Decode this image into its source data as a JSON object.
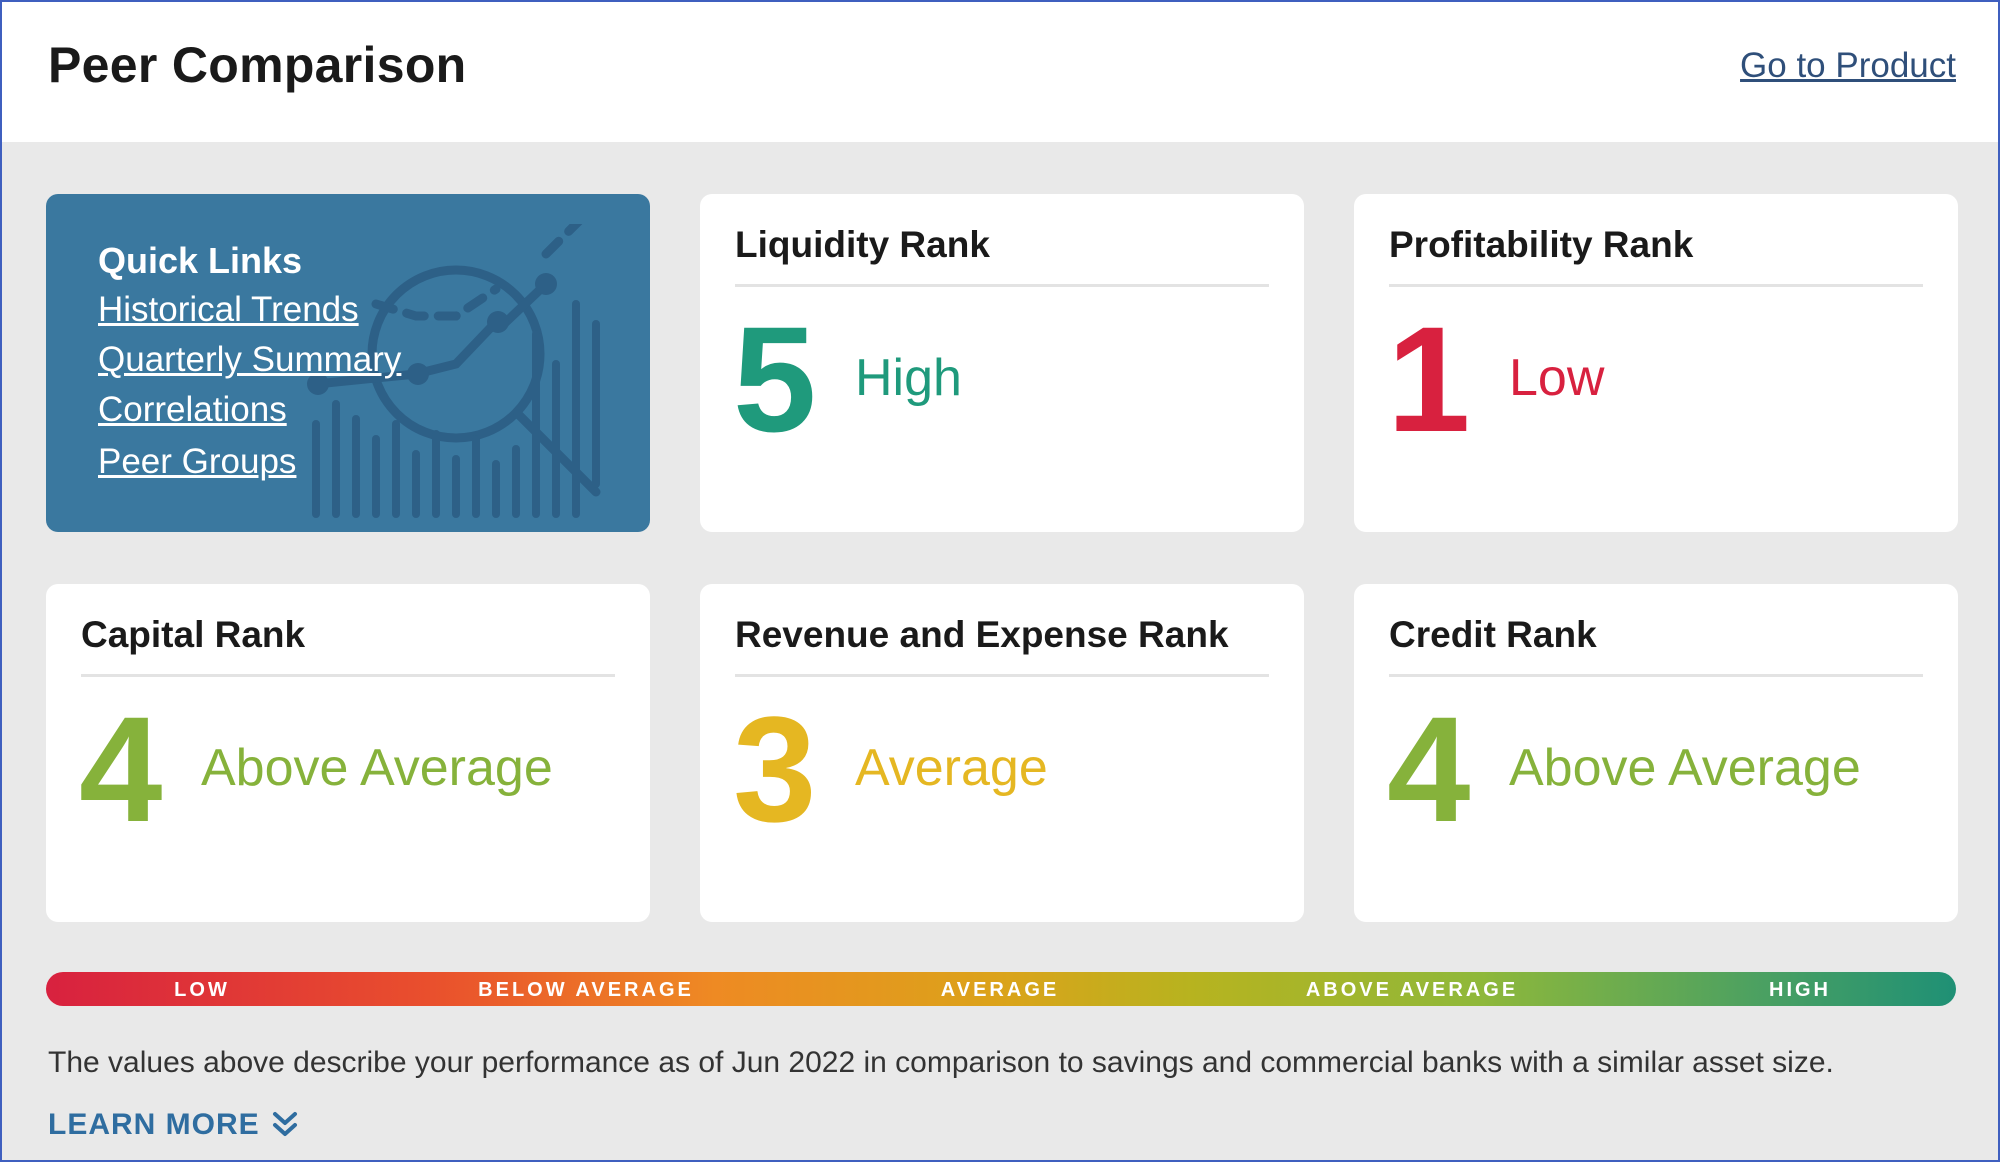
{
  "header": {
    "title": "Peer Comparison",
    "go_link": "Go to Product"
  },
  "quick_links": {
    "title": "Quick Links",
    "links": [
      "Historical Trends",
      "Quarterly Summary",
      "Correlations",
      "Peer Groups"
    ],
    "bg_icon": "chart-magnifier-icon",
    "color": "#3a789f"
  },
  "ranks": [
    {
      "title": "Liquidity Rank",
      "value": "5",
      "label": "High",
      "color": "#1f9a7c"
    },
    {
      "title": "Profitability Rank",
      "value": "1",
      "label": "Low",
      "color": "#d8213f"
    },
    {
      "title": "Capital Rank",
      "value": "4",
      "label": "Above Average",
      "color": "#86b23b"
    },
    {
      "title": "Revenue and Expense Rank",
      "value": "3",
      "label": "Average",
      "color": "#e5b722"
    },
    {
      "title": "Credit Rank",
      "value": "4",
      "label": "Above Average",
      "color": "#86b23b"
    }
  ],
  "scale": {
    "labels": [
      "LOW",
      "BELOW AVERAGE",
      "AVERAGE",
      "ABOVE AVERAGE",
      "HIGH"
    ]
  },
  "footer": {
    "description": "The values above describe your performance as of Jun 2022 in comparison to savings and commercial banks with a similar asset size.",
    "learn_more": "LEARN MORE",
    "learn_icon": "double-chevron-down-icon"
  }
}
